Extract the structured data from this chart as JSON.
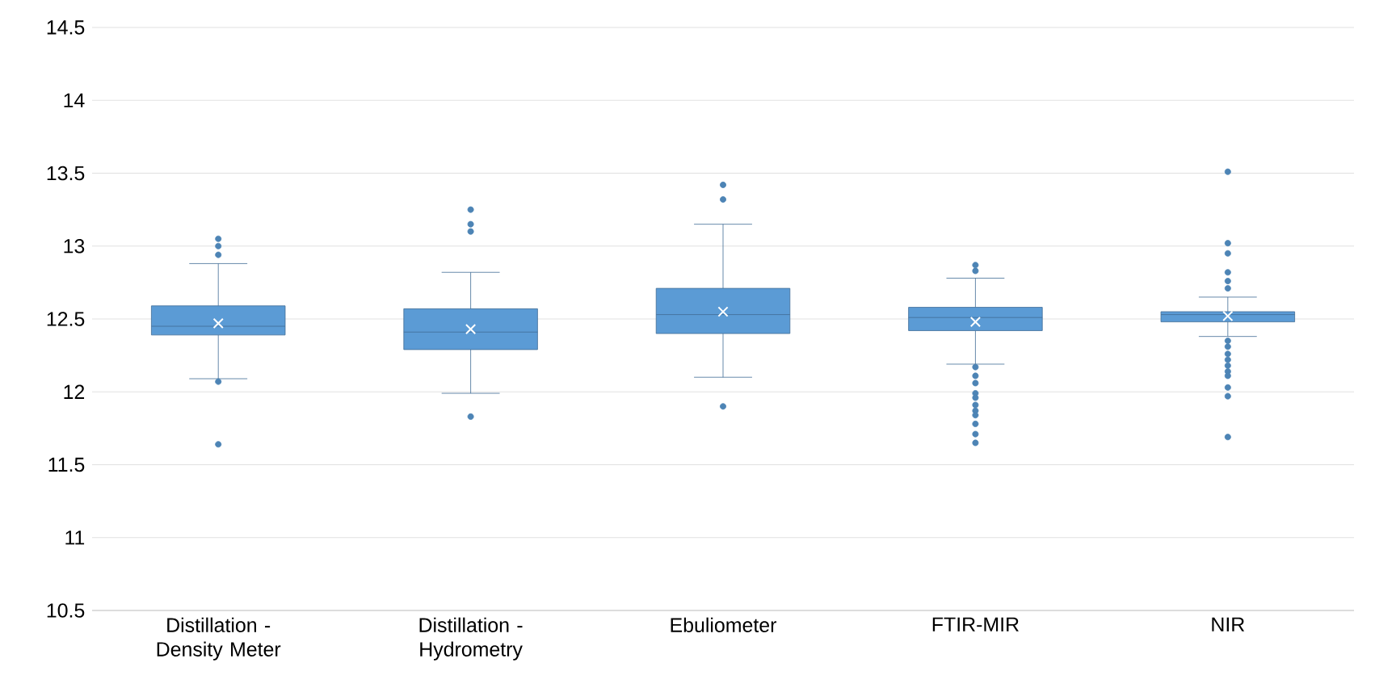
{
  "chart_data": {
    "type": "box",
    "categories": [
      "Distillation - Density Meter",
      "Distillation - Hydrometry",
      "Ebuliometer",
      "FTIR-MIR",
      "NIR"
    ],
    "color": "#5b9bd5",
    "boxes": [
      {
        "low": 12.09,
        "q1": 12.39,
        "median": 12.45,
        "q3": 12.59,
        "high": 12.88,
        "mean": 12.47,
        "outliers": [
          13.05,
          13.0,
          12.94,
          12.07,
          11.64
        ]
      },
      {
        "low": 11.99,
        "q1": 12.29,
        "median": 12.41,
        "q3": 12.57,
        "high": 12.82,
        "mean": 12.43,
        "outliers": [
          13.25,
          13.15,
          13.1,
          11.83
        ]
      },
      {
        "low": 12.1,
        "q1": 12.4,
        "median": 12.53,
        "q3": 12.71,
        "high": 13.15,
        "mean": 12.55,
        "outliers": [
          13.42,
          13.32,
          11.9
        ]
      },
      {
        "low": 12.19,
        "q1": 12.42,
        "median": 12.51,
        "q3": 12.58,
        "high": 12.78,
        "mean": 12.48,
        "outliers": [
          12.87,
          12.83,
          12.17,
          12.11,
          12.06,
          11.99,
          11.96,
          11.91,
          11.87,
          11.84,
          11.78,
          11.71,
          11.65
        ]
      },
      {
        "low": 12.38,
        "q1": 12.48,
        "median": 12.53,
        "q3": 12.55,
        "high": 12.65,
        "mean": 12.52,
        "outliers": [
          13.51,
          13.02,
          12.95,
          12.82,
          12.76,
          12.71,
          12.35,
          12.31,
          12.26,
          12.22,
          12.18,
          12.14,
          12.11,
          12.03,
          11.97,
          11.69
        ]
      }
    ],
    "ylim": [
      10.5,
      14.5
    ],
    "yticks": [
      10.5,
      11,
      11.5,
      12,
      12.5,
      13,
      13.5,
      14,
      14.5
    ],
    "grid": "y"
  }
}
